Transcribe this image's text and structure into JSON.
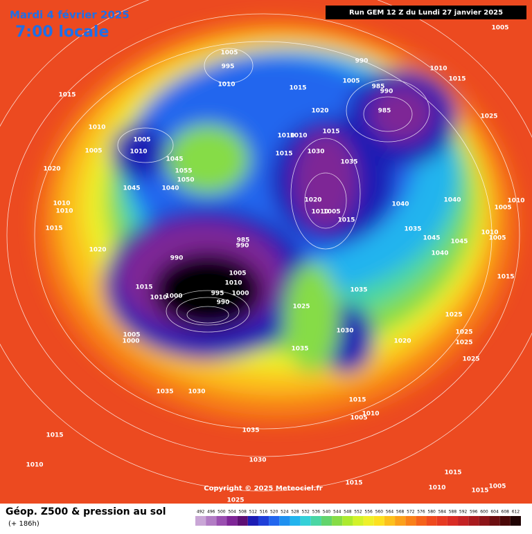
{
  "header": {
    "date": "Mardi 4 février 2025",
    "time": "7:00 locale",
    "run": "Run GEM 12 Z du Lundi 27 janvier 2025"
  },
  "footer": {
    "title": "Géop. Z500 & pression au sol",
    "lead": "(+ 186h)",
    "copyright": "Copyright © 2025 Meteociel.fr"
  },
  "colorbar": {
    "labels": [
      492,
      496,
      500,
      504,
      508,
      512,
      516,
      520,
      524,
      528,
      532,
      536,
      540,
      544,
      548,
      552,
      556,
      560,
      564,
      568,
      572,
      576,
      580,
      584,
      588,
      592,
      596,
      600,
      604,
      608,
      612
    ],
    "colors": [
      "#c9a6d6",
      "#b27cc4",
      "#9a4fb0",
      "#7e2596",
      "#5e0f74",
      "#1c1cb4",
      "#1f3fd8",
      "#2266ee",
      "#1e90f0",
      "#22b4ee",
      "#34d0d8",
      "#4ad6a4",
      "#62d46c",
      "#86dc46",
      "#acea2e",
      "#d2f22a",
      "#eef02a",
      "#fce020",
      "#fcc01c",
      "#fba01a",
      "#f98018",
      "#f5621a",
      "#ef4a1e",
      "#e63a22",
      "#d92c24",
      "#c42224",
      "#a81a1e",
      "#8c1418",
      "#6c0e10",
      "#4a0808",
      "#200404"
    ]
  },
  "isobar_labels": [
    1005,
    990,
    1010,
    1015,
    1005,
    995,
    1010,
    1015,
    1005,
    985,
    990,
    985,
    1020,
    1025,
    1015,
    1010,
    1005,
    1005,
    1010,
    1045,
    1055,
    1050,
    1040,
    1045,
    1020,
    1010,
    1010,
    1015,
    1030,
    1015,
    1035,
    1020,
    1010,
    1005,
    1015,
    1040,
    1040,
    1005,
    1010,
    1035,
    1045,
    1045,
    1040,
    1010,
    1005,
    1010,
    1010,
    1015,
    1020,
    985,
    990,
    990,
    1005,
    1010,
    1000,
    995,
    990,
    1015,
    1010,
    1000,
    1035,
    1025,
    1025,
    1015,
    1030,
    1020,
    1025,
    1025,
    1025,
    1005,
    1000,
    1035,
    1035,
    1030,
    1015,
    1010,
    1005,
    1035,
    1015,
    1010,
    1030,
    1015,
    1010,
    1015,
    1015,
    1005,
    1025
  ]
}
